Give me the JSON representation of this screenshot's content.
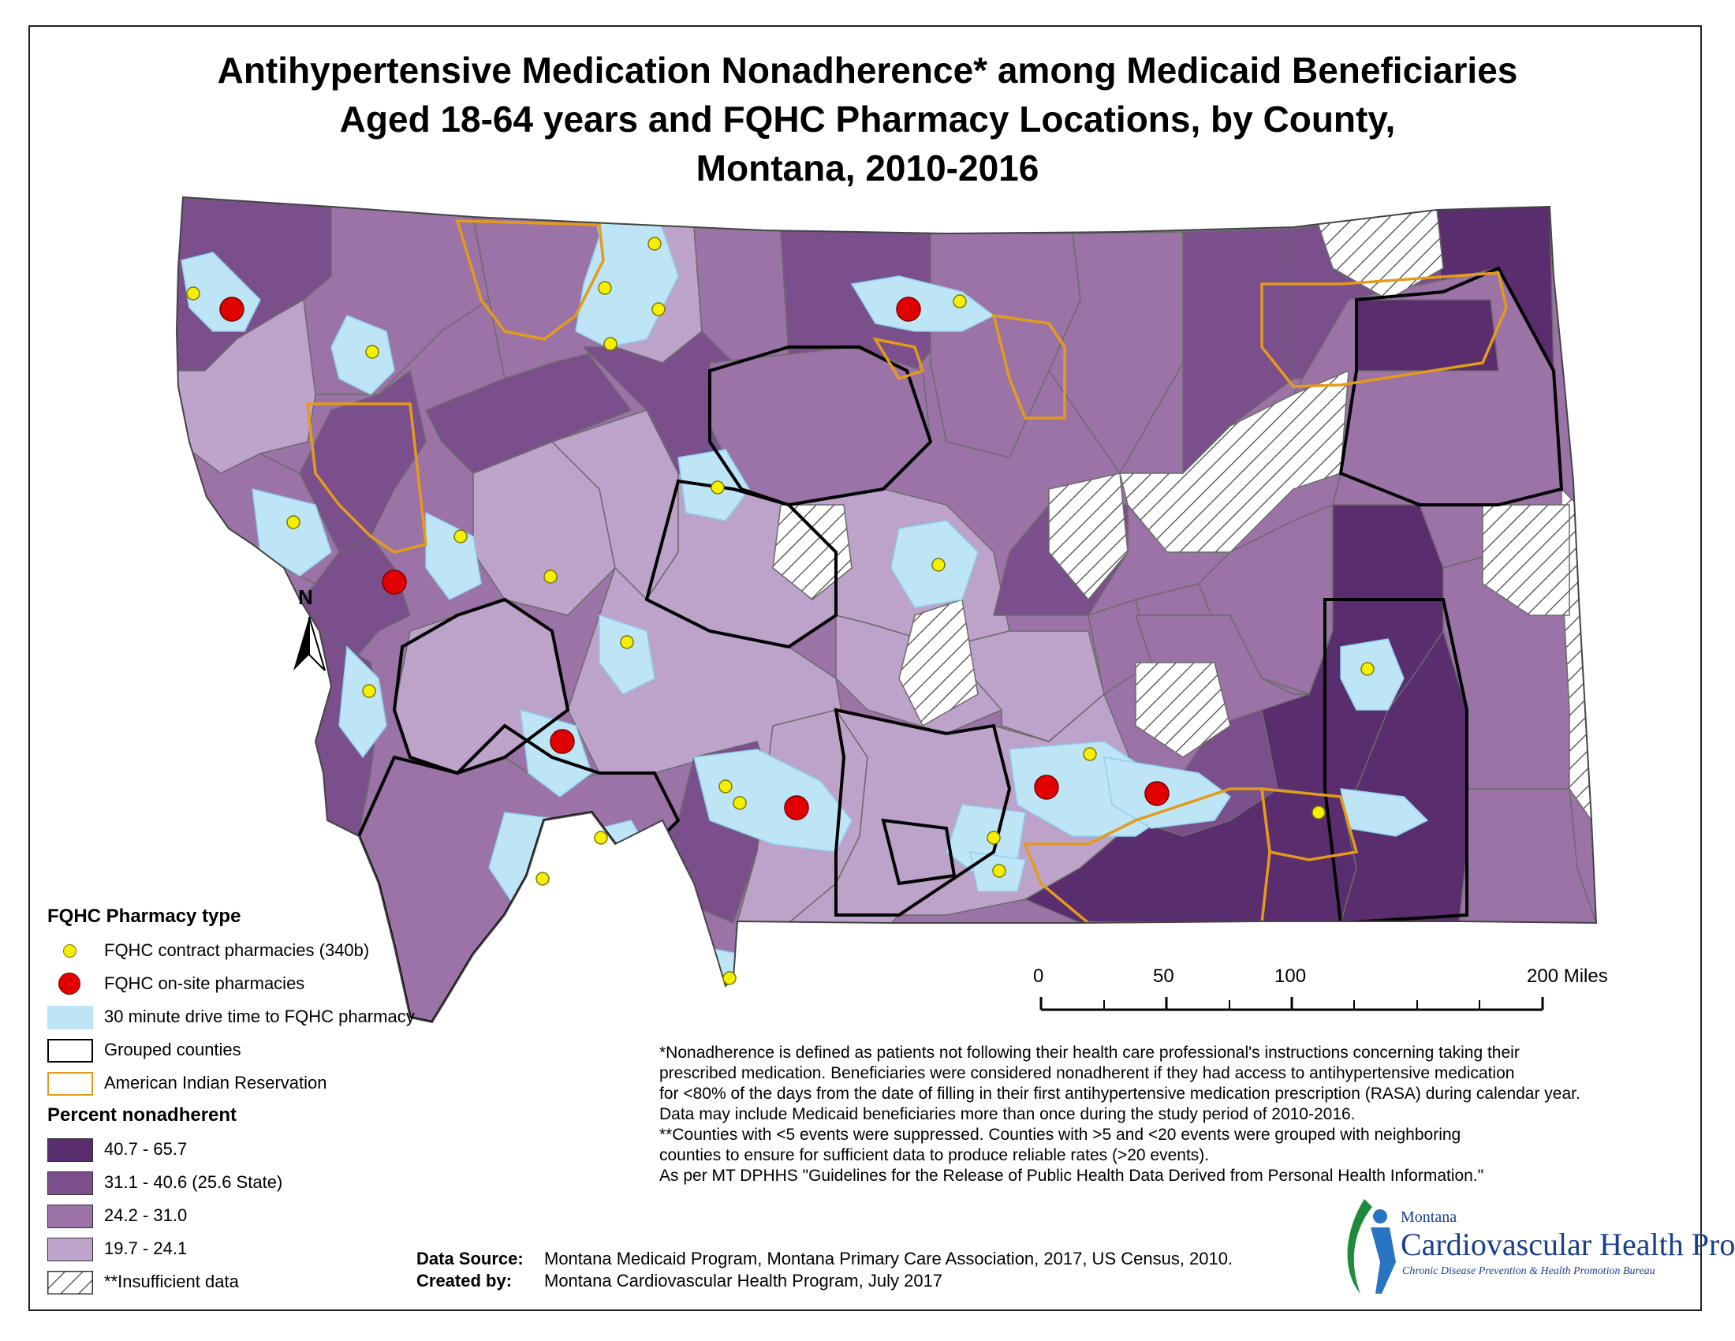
{
  "title": {
    "line1": "Antihypertensive Medication Nonadherence* among Medicaid Beneficiaries",
    "line2": "Aged 18-64 years and FQHC Pharmacy Locations, by County,",
    "line3": "Montana, 2010-2016"
  },
  "colors": {
    "class1": "#5a2d6e",
    "class2": "#7b4f8c",
    "class3": "#9b73a7",
    "class4": "#bda2c9",
    "insufficient_hatch": "#444444",
    "drive_time": "#bde5f6",
    "grouped_border": "#000000",
    "reservation_border": "#e39b1b",
    "contract_pharmacy": "#f6f000",
    "onsite_pharmacy": "#e00000"
  },
  "legend": {
    "pharmacy_heading": "FQHC Pharmacy type",
    "contract": "FQHC contract pharmacies (340b)",
    "onsite": "FQHC on-site pharmacies",
    "drive": "30 minute drive time to FQHC pharmacy",
    "grouped": "Grouped counties",
    "reservation": "American Indian Reservation",
    "percent_heading": "Percent nonadherent",
    "classes": [
      {
        "range": "40.7 - 65.7"
      },
      {
        "range": "31.1 - 40.6  (25.6 State)"
      },
      {
        "range": "24.2 - 31.0"
      },
      {
        "range": "19.7 - 24.1"
      }
    ],
    "insufficient": "**Insufficient data"
  },
  "scale": {
    "ticks": [
      "0",
      "50",
      "100"
    ],
    "end_label": "200 Miles"
  },
  "north_label": "N",
  "footnote": [
    "*Nonadherence is defined as patients not following their health care professional's instructions concerning taking their",
    "prescribed medication. Beneficiaries were considered nonadherent if they had access to antihypertensive medication",
    "for <80% of the days from the date of filling in their first antihypertensive medication prescription (RASA) during calendar year.",
    "Data may include Medicaid beneficiaries more than once during the study period of 2010-2016.",
    "**Counties with <5 events were suppressed. Counties with >5 and <20 events were grouped with neighboring",
    "counties to ensure for sufficient data to produce reliable rates (>20 events).",
    "As per MT DPHHS \"Guidelines for the Release of Public Health Data Derived from Personal Health Information.\""
  ],
  "source": {
    "data_label": "Data Source:",
    "data_value": "Montana Medicaid Program, Montana Primary Care Association, 2017, US Census, 2010.",
    "created_label": "Created by:",
    "created_value": "Montana Cardiovascular Health Program, July 2017"
  },
  "logo": {
    "small": "Montana",
    "main": "Cardiovascular Health Program",
    "sub": "Chronic Disease Prevention & Health Promotion Bureau"
  }
}
